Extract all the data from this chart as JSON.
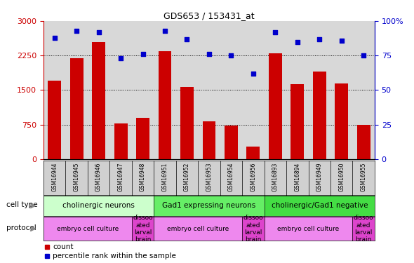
{
  "title": "GDS653 / 153431_at",
  "samples": [
    "GSM16944",
    "GSM16945",
    "GSM16946",
    "GSM16947",
    "GSM16948",
    "GSM16951",
    "GSM16952",
    "GSM16953",
    "GSM16954",
    "GSM16956",
    "GSM16893",
    "GSM16894",
    "GSM16949",
    "GSM16950",
    "GSM16955"
  ],
  "counts": [
    1700,
    2200,
    2550,
    775,
    900,
    2350,
    1575,
    825,
    725,
    275,
    2300,
    1625,
    1900,
    1650,
    750
  ],
  "percentile": [
    88,
    93,
    92,
    73,
    76,
    93,
    87,
    76,
    75,
    62,
    92,
    85,
    87,
    86,
    75
  ],
  "ylim_left": [
    0,
    3000
  ],
  "ylim_right": [
    0,
    100
  ],
  "yticks_left": [
    0,
    750,
    1500,
    2250,
    3000
  ],
  "yticks_right": [
    0,
    25,
    50,
    75,
    100
  ],
  "bar_color": "#cc0000",
  "dot_color": "#0000cc",
  "cell_type_groups": [
    {
      "label": "cholinergic neurons",
      "start": 0,
      "end": 5,
      "color": "#ccffcc"
    },
    {
      "label": "Gad1 expressing neurons",
      "start": 5,
      "end": 10,
      "color": "#66ee66"
    },
    {
      "label": "cholinergic/Gad1 negative",
      "start": 10,
      "end": 15,
      "color": "#44dd44"
    }
  ],
  "protocol_groups": [
    {
      "label": "embryo cell culture",
      "start": 0,
      "end": 4,
      "color": "#ee88ee"
    },
    {
      "label": "dissoo\nated\nlarval\nbrain",
      "start": 4,
      "end": 5,
      "color": "#dd44cc"
    },
    {
      "label": "embryo cell culture",
      "start": 5,
      "end": 9,
      "color": "#ee88ee"
    },
    {
      "label": "dissoo\nated\nlarval\nbrain",
      "start": 9,
      "end": 10,
      "color": "#dd44cc"
    },
    {
      "label": "embryo cell culture",
      "start": 10,
      "end": 14,
      "color": "#ee88ee"
    },
    {
      "label": "dissoo\nated\nlarval\nbrain",
      "start": 14,
      "end": 15,
      "color": "#dd44cc"
    }
  ],
  "legend_count_color": "#cc0000",
  "legend_dot_color": "#0000cc",
  "axis_label_color_left": "#cc0000",
  "axis_label_color_right": "#0000cc",
  "bg_color": "#ffffff",
  "plot_bg_color": "#d8d8d8",
  "xticklabel_bg": "#d0d0d0"
}
